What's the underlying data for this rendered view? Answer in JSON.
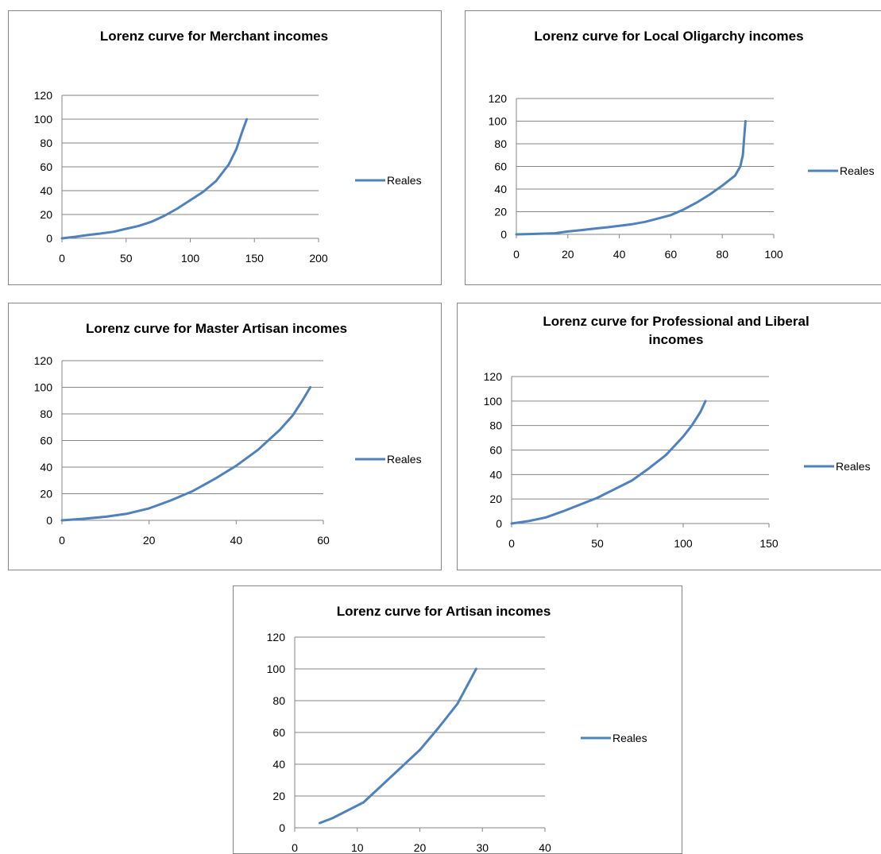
{
  "chart_data": [
    {
      "type": "line",
      "title": [
        "Lorenz curve for Merchant incomes"
      ],
      "xlabel": "",
      "ylabel": "",
      "xlim": [
        0,
        200
      ],
      "ylim": [
        0,
        120
      ],
      "x_ticks": [
        "0",
        "50",
        "100",
        "150",
        "200"
      ],
      "y_ticks": [
        "0",
        "20",
        "40",
        "60",
        "80",
        "100",
        "120"
      ],
      "grid": "horizontal",
      "legend_position": "right",
      "series": [
        {
          "name": "Reales",
          "color": "#4f81bd",
          "x": [
            0,
            10,
            20,
            30,
            40,
            50,
            60,
            70,
            80,
            90,
            100,
            110,
            120,
            130,
            136,
            140,
            144
          ],
          "y": [
            0,
            1.3,
            2.7,
            4,
            5.5,
            8,
            10.5,
            14,
            19,
            25,
            32,
            39,
            48,
            62,
            75,
            88,
            100
          ]
        }
      ]
    },
    {
      "type": "line",
      "title": [
        "Lorenz curve for Local Oligarchy incomes"
      ],
      "xlabel": "",
      "ylabel": "",
      "xlim": [
        0,
        100
      ],
      "ylim": [
        0,
        120
      ],
      "x_ticks": [
        "0",
        "20",
        "40",
        "60",
        "80",
        "100"
      ],
      "y_ticks": [
        "0",
        "20",
        "40",
        "60",
        "80",
        "100",
        "120"
      ],
      "grid": "horizontal",
      "legend_position": "right",
      "series": [
        {
          "name": "Reales",
          "color": "#4f81bd",
          "x": [
            0,
            5,
            10,
            15,
            20,
            25,
            30,
            35,
            40,
            45,
            50,
            55,
            60,
            65,
            70,
            75,
            80,
            85,
            87,
            88,
            88.5,
            89
          ],
          "y": [
            0,
            0.3,
            0.6,
            1,
            2.5,
            3.7,
            5,
            6.2,
            7.5,
            9,
            11,
            14,
            17,
            22,
            28,
            35,
            43,
            52,
            60,
            70,
            85,
            100
          ]
        }
      ]
    },
    {
      "type": "line",
      "title": [
        "Lorenz curve for Master Artisan incomes"
      ],
      "xlabel": "",
      "ylabel": "",
      "xlim": [
        0,
        60
      ],
      "ylim": [
        0,
        120
      ],
      "x_ticks": [
        "0",
        "20",
        "40",
        "60"
      ],
      "y_ticks": [
        "0",
        "20",
        "40",
        "60",
        "80",
        "100",
        "120"
      ],
      "grid": "horizontal",
      "legend_position": "right",
      "series": [
        {
          "name": "Reales",
          "color": "#4f81bd",
          "x": [
            0,
            5,
            10,
            15,
            20,
            25,
            30,
            35,
            40,
            45,
            50,
            53,
            55,
            57
          ],
          "y": [
            0,
            1.2,
            2.7,
            5,
            9,
            15,
            22,
            31,
            41,
            53,
            68,
            79,
            89,
            100
          ]
        }
      ]
    },
    {
      "type": "line",
      "title": [
        "Lorenz curve for Professional and Liberal",
        "incomes"
      ],
      "xlabel": "",
      "ylabel": "",
      "xlim": [
        0,
        150
      ],
      "ylim": [
        0,
        120
      ],
      "x_ticks": [
        "0",
        "50",
        "100",
        "150"
      ],
      "y_ticks": [
        "0",
        "20",
        "40",
        "60",
        "80",
        "100",
        "120"
      ],
      "grid": "horizontal",
      "legend_position": "right",
      "series": [
        {
          "name": "Reales",
          "color": "#4f81bd",
          "x": [
            0,
            10,
            20,
            30,
            40,
            50,
            60,
            70,
            80,
            90,
            100,
            105,
            110,
            113
          ],
          "y": [
            0,
            2,
            5,
            10,
            15.5,
            21,
            28,
            35,
            45,
            56,
            71,
            80,
            91,
            100
          ]
        }
      ]
    },
    {
      "type": "line",
      "title": [
        "Lorenz curve for Artisan incomes"
      ],
      "xlabel": "",
      "ylabel": "",
      "xlim": [
        0,
        40
      ],
      "ylim": [
        0,
        120
      ],
      "x_ticks": [
        "0",
        "10",
        "20",
        "30",
        "40"
      ],
      "y_ticks": [
        "0",
        "20",
        "40",
        "60",
        "80",
        "100",
        "120"
      ],
      "grid": "horizontal",
      "legend_position": "right",
      "series": [
        {
          "name": "Reales",
          "color": "#4f81bd",
          "x": [
            4,
            6,
            8,
            11,
            14,
            17,
            20,
            23,
            26,
            29
          ],
          "y": [
            3,
            6,
            10,
            16,
            27,
            38,
            49,
            63,
            78,
            100
          ]
        }
      ]
    }
  ]
}
